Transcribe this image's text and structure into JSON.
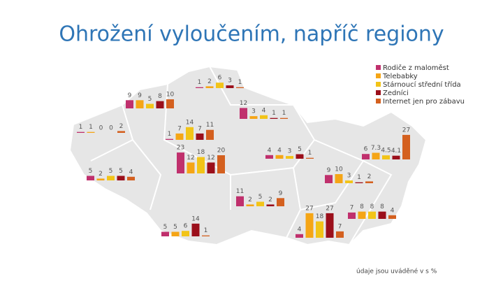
{
  "chart_data": {
    "type": "bar",
    "title": "Ohrožení vyloučením, napříč regiony",
    "note": "údaje jsou uváděné v s %",
    "series": [
      {
        "name": "Rodiče z maloměst",
        "color": "#c0306d"
      },
      {
        "name": "Telebabky",
        "color": "#f5a516"
      },
      {
        "name": "Stárnoucí střední třída",
        "color": "#f2c418"
      },
      {
        "name": "Zedníci",
        "color": "#9b0f1b"
      },
      {
        "name": "Internet jen pro zábavu",
        "color": "#d4601f"
      }
    ],
    "regions": [
      {
        "values": [
          1,
          1,
          0,
          0,
          2
        ]
      },
      {
        "values": [
          9,
          9,
          5,
          8,
          10
        ]
      },
      {
        "values": [
          1,
          2,
          6,
          3,
          1
        ]
      },
      {
        "values": [
          12,
          3,
          4,
          1,
          1
        ]
      },
      {
        "values": [
          1,
          7,
          14,
          7,
          11
        ]
      },
      {
        "values": [
          23,
          12,
          18,
          12,
          20
        ]
      },
      {
        "values": [
          4,
          4,
          3,
          5,
          1
        ]
      },
      {
        "values": [
          6,
          7.3,
          4.5,
          4.1,
          27
        ]
      },
      {
        "values": [
          5,
          2,
          5,
          5,
          4
        ]
      },
      {
        "values": [
          9,
          10,
          3,
          1,
          2
        ]
      },
      {
        "values": [
          11,
          2,
          5,
          2,
          9
        ]
      },
      {
        "values": [
          7,
          8,
          8,
          8,
          4
        ]
      },
      {
        "values": [
          4,
          27,
          18,
          27,
          7
        ]
      },
      {
        "values": [
          5,
          5,
          6,
          14,
          1
        ]
      }
    ]
  }
}
